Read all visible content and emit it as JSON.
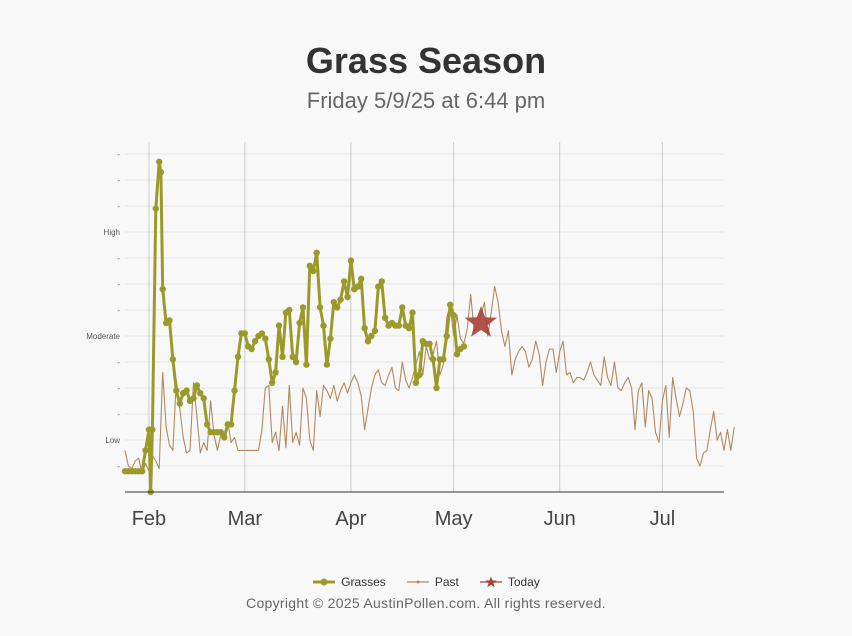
{
  "header": {
    "title": "Grass Season",
    "subtitle": "Friday 5/9/25 at 6:44 pm"
  },
  "footer": {
    "copyright": "Copyright © 2025 AustinPollen.com.  All rights reserved."
  },
  "legend": {
    "grasses": "Grasses",
    "past": "Past",
    "today": "Today"
  },
  "colors": {
    "grasses": "#9a9a2a",
    "past": "#b08a5e",
    "today": "#a8403a",
    "grid": "#e6e6e6",
    "month_line": "#cccccc"
  },
  "chart_data": {
    "type": "line",
    "x_axis": {
      "unit": "day of year",
      "range": [
        25,
        200
      ],
      "month_ticks": [
        {
          "label": "Feb",
          "day": 32
        },
        {
          "label": "Mar",
          "day": 60
        },
        {
          "label": "Apr",
          "day": 91
        },
        {
          "label": "May",
          "day": 121
        },
        {
          "label": "Jun",
          "day": 152
        },
        {
          "label": "Jul",
          "day": 182
        }
      ]
    },
    "y_axis": {
      "range": [
        0,
        13
      ],
      "ticks": [
        {
          "value": 1,
          "label": "-"
        },
        {
          "value": 2,
          "label": "Low"
        },
        {
          "value": 3,
          "label": "-"
        },
        {
          "value": 4,
          "label": "-"
        },
        {
          "value": 5,
          "label": "-"
        },
        {
          "value": 6,
          "label": "Moderate"
        },
        {
          "value": 7,
          "label": "-"
        },
        {
          "value": 8,
          "label": "-"
        },
        {
          "value": 9,
          "label": "-"
        },
        {
          "value": 10,
          "label": "High"
        },
        {
          "value": 11,
          "label": "-"
        },
        {
          "value": 12,
          "label": "-"
        },
        {
          "value": 13,
          "label": "-"
        }
      ]
    },
    "series": [
      {
        "name": "Grasses",
        "points": [
          [
            25,
            0.8
          ],
          [
            26,
            0.8
          ],
          [
            27,
            0.8
          ],
          [
            28,
            0.8
          ],
          [
            29,
            0.8
          ],
          [
            30,
            0.8
          ],
          [
            31,
            1.6
          ],
          [
            32,
            2.4
          ],
          [
            32.5,
            0.0
          ],
          [
            33,
            2.4
          ],
          [
            34,
            10.9
          ],
          [
            35,
            12.7
          ],
          [
            35.5,
            12.3
          ],
          [
            36,
            7.8
          ],
          [
            37,
            6.5
          ],
          [
            38,
            6.6
          ],
          [
            39,
            5.1
          ],
          [
            40,
            3.9
          ],
          [
            41,
            3.4
          ],
          [
            42,
            3.8
          ],
          [
            43,
            3.9
          ],
          [
            44,
            3.5
          ],
          [
            45,
            3.6
          ],
          [
            46,
            4.1
          ],
          [
            47,
            3.8
          ],
          [
            48,
            3.6
          ],
          [
            49,
            2.6
          ],
          [
            50,
            2.3
          ],
          [
            51,
            2.3
          ],
          [
            52,
            2.3
          ],
          [
            53,
            2.3
          ],
          [
            54,
            2.1
          ],
          [
            55,
            2.6
          ],
          [
            56,
            2.6
          ],
          [
            57,
            3.9
          ],
          [
            58,
            5.2
          ],
          [
            59,
            6.1
          ],
          [
            60,
            6.1
          ],
          [
            61,
            5.6
          ],
          [
            62,
            5.5
          ],
          [
            63,
            5.8
          ],
          [
            64,
            6.0
          ],
          [
            65,
            6.1
          ],
          [
            66,
            5.9
          ],
          [
            67,
            5.1
          ],
          [
            68,
            4.2
          ],
          [
            69,
            4.6
          ],
          [
            70,
            6.4
          ],
          [
            71,
            5.2
          ],
          [
            72,
            6.9
          ],
          [
            73,
            7.0
          ],
          [
            74,
            5.2
          ],
          [
            75,
            5.0
          ],
          [
            76,
            6.5
          ],
          [
            77,
            7.1
          ],
          [
            78,
            4.9
          ],
          [
            79,
            8.7
          ],
          [
            80,
            8.5
          ],
          [
            81,
            9.2
          ],
          [
            82,
            7.1
          ],
          [
            83,
            6.4
          ],
          [
            84,
            4.9
          ],
          [
            85,
            5.9
          ],
          [
            86,
            7.3
          ],
          [
            87,
            7.1
          ],
          [
            88,
            7.4
          ],
          [
            89,
            8.1
          ],
          [
            90,
            7.5
          ],
          [
            91,
            8.9
          ],
          [
            92,
            7.8
          ],
          [
            93,
            7.9
          ],
          [
            94,
            8.2
          ],
          [
            95,
            6.3
          ],
          [
            96,
            5.8
          ],
          [
            97,
            6.0
          ],
          [
            98,
            6.2
          ],
          [
            99,
            7.9
          ],
          [
            100,
            8.1
          ],
          [
            101,
            6.7
          ],
          [
            102,
            6.4
          ],
          [
            103,
            6.5
          ],
          [
            104,
            6.4
          ],
          [
            105,
            6.4
          ],
          [
            106,
            7.1
          ],
          [
            107,
            6.4
          ],
          [
            108,
            6.3
          ],
          [
            109,
            6.9
          ],
          [
            110,
            4.2
          ],
          [
            111,
            4.5
          ],
          [
            112,
            5.8
          ],
          [
            113,
            5.7
          ],
          [
            114,
            5.7
          ],
          [
            115,
            5.1
          ],
          [
            116,
            4.0
          ],
          [
            117,
            5.1
          ],
          [
            118,
            5.1
          ],
          [
            119,
            6.0
          ],
          [
            120,
            7.2
          ],
          [
            121,
            6.8
          ],
          [
            122,
            5.3
          ],
          [
            123,
            5.5
          ],
          [
            124,
            5.6
          ]
        ]
      },
      {
        "name": "Past",
        "points": [
          [
            25,
            1.6
          ],
          [
            26,
            1.0
          ],
          [
            27,
            0.9
          ],
          [
            28,
            1.2
          ],
          [
            29,
            1.3
          ],
          [
            30,
            0.7
          ],
          [
            31,
            1.1
          ],
          [
            32,
            0.8
          ],
          [
            33,
            1.4
          ],
          [
            34,
            1.2
          ],
          [
            35,
            0.9
          ],
          [
            36,
            4.6
          ],
          [
            37,
            2.5
          ],
          [
            38,
            1.8
          ],
          [
            39,
            1.6
          ],
          [
            40,
            4.3
          ],
          [
            41,
            3.2
          ],
          [
            42,
            2.1
          ],
          [
            43,
            1.5
          ],
          [
            44,
            1.6
          ],
          [
            45,
            4.2
          ],
          [
            46,
            2.9
          ],
          [
            47,
            1.5
          ],
          [
            48,
            1.9
          ],
          [
            49,
            1.6
          ],
          [
            50,
            3.5
          ],
          [
            51,
            2.2
          ],
          [
            52,
            1.6
          ],
          [
            53,
            2.2
          ],
          [
            54,
            2.0
          ],
          [
            55,
            2.7
          ],
          [
            56,
            1.9
          ],
          [
            57,
            2.1
          ],
          [
            58,
            1.6
          ],
          [
            59,
            1.6
          ],
          [
            60,
            1.6
          ],
          [
            61,
            1.6
          ],
          [
            62,
            1.6
          ],
          [
            63,
            1.6
          ],
          [
            64,
            1.6
          ],
          [
            65,
            2.4
          ],
          [
            66,
            4.0
          ],
          [
            67,
            4.1
          ],
          [
            68,
            1.9
          ],
          [
            69,
            2.3
          ],
          [
            70,
            1.6
          ],
          [
            71,
            3.3
          ],
          [
            72,
            1.7
          ],
          [
            73,
            4.1
          ],
          [
            74,
            1.9
          ],
          [
            75,
            2.3
          ],
          [
            76,
            1.8
          ],
          [
            77,
            4.0
          ],
          [
            78,
            3.6
          ],
          [
            79,
            2.0
          ],
          [
            80,
            1.6
          ],
          [
            81,
            3.9
          ],
          [
            82,
            2.9
          ],
          [
            83,
            4.1
          ],
          [
            84,
            3.9
          ],
          [
            85,
            3.6
          ],
          [
            86,
            4.1
          ],
          [
            87,
            3.5
          ],
          [
            88,
            3.9
          ],
          [
            89,
            4.2
          ],
          [
            90,
            3.8
          ],
          [
            91,
            4.2
          ],
          [
            92,
            4.5
          ],
          [
            93,
            4.2
          ],
          [
            94,
            3.7
          ],
          [
            95,
            2.4
          ],
          [
            96,
            3.2
          ],
          [
            97,
            4.0
          ],
          [
            98,
            4.5
          ],
          [
            99,
            4.7
          ],
          [
            100,
            4.2
          ],
          [
            101,
            4.1
          ],
          [
            102,
            4.5
          ],
          [
            103,
            4.8
          ],
          [
            104,
            4.0
          ],
          [
            105,
            3.9
          ],
          [
            106,
            5.0
          ],
          [
            107,
            4.3
          ],
          [
            108,
            4.0
          ],
          [
            109,
            4.4
          ],
          [
            110,
            4.9
          ],
          [
            111,
            5.4
          ],
          [
            112,
            4.5
          ],
          [
            113,
            5.6
          ],
          [
            114,
            5.1
          ],
          [
            115,
            5.3
          ],
          [
            116,
            5.8
          ],
          [
            117,
            4.5
          ],
          [
            118,
            4.9
          ],
          [
            119,
            6.7
          ],
          [
            120,
            7.2
          ],
          [
            121,
            6.0
          ],
          [
            122,
            6.8
          ],
          [
            123,
            5.9
          ],
          [
            124,
            5.7
          ],
          [
            125,
            6.3
          ],
          [
            126,
            7.6
          ],
          [
            127,
            6.2
          ],
          [
            128,
            6.4
          ],
          [
            129,
            6.8
          ],
          [
            130,
            7.3
          ],
          [
            131,
            6.0
          ],
          [
            132,
            6.9
          ],
          [
            133,
            7.9
          ],
          [
            134,
            7.3
          ],
          [
            135,
            6.2
          ],
          [
            136,
            5.6
          ],
          [
            137,
            6.2
          ],
          [
            138,
            4.5
          ],
          [
            139,
            5.1
          ],
          [
            140,
            5.4
          ],
          [
            141,
            5.6
          ],
          [
            142,
            5.4
          ],
          [
            143,
            4.8
          ],
          [
            144,
            5.1
          ],
          [
            145,
            5.8
          ],
          [
            146,
            5.3
          ],
          [
            147,
            4.1
          ],
          [
            148,
            5.0
          ],
          [
            149,
            5.5
          ],
          [
            150,
            5.5
          ],
          [
            151,
            4.6
          ],
          [
            152,
            5.4
          ],
          [
            153,
            5.8
          ],
          [
            154,
            4.5
          ],
          [
            155,
            4.6
          ],
          [
            156,
            4.2
          ],
          [
            157,
            4.4
          ],
          [
            158,
            4.4
          ],
          [
            159,
            4.3
          ],
          [
            160,
            4.6
          ],
          [
            161,
            5.0
          ],
          [
            162,
            4.5
          ],
          [
            163,
            4.3
          ],
          [
            164,
            4.1
          ],
          [
            165,
            5.2
          ],
          [
            166,
            4.4
          ],
          [
            167,
            4.1
          ],
          [
            168,
            5.0
          ],
          [
            169,
            4.0
          ],
          [
            170,
            3.9
          ],
          [
            171,
            4.2
          ],
          [
            172,
            4.4
          ],
          [
            173,
            4.0
          ],
          [
            174,
            2.4
          ],
          [
            175,
            3.9
          ],
          [
            176,
            4.2
          ],
          [
            177,
            2.5
          ],
          [
            178,
            3.9
          ],
          [
            179,
            3.6
          ],
          [
            180,
            2.3
          ],
          [
            181,
            1.9
          ],
          [
            182,
            3.5
          ],
          [
            183,
            4.1
          ],
          [
            184,
            2.1
          ],
          [
            185,
            4.4
          ],
          [
            186,
            3.6
          ],
          [
            187,
            2.9
          ],
          [
            188,
            3.4
          ],
          [
            189,
            4.0
          ],
          [
            190,
            3.9
          ],
          [
            191,
            3.1
          ],
          [
            192,
            1.3
          ],
          [
            193,
            1.0
          ],
          [
            194,
            1.5
          ],
          [
            195,
            1.6
          ],
          [
            196,
            2.4
          ],
          [
            197,
            3.1
          ],
          [
            198,
            2.0
          ],
          [
            199,
            2.3
          ],
          [
            200,
            1.6
          ],
          [
            201,
            2.4
          ],
          [
            202,
            1.6
          ],
          [
            203,
            2.5
          ]
        ]
      },
      {
        "name": "Today",
        "points": [
          [
            129,
            6.5
          ]
        ]
      }
    ]
  }
}
